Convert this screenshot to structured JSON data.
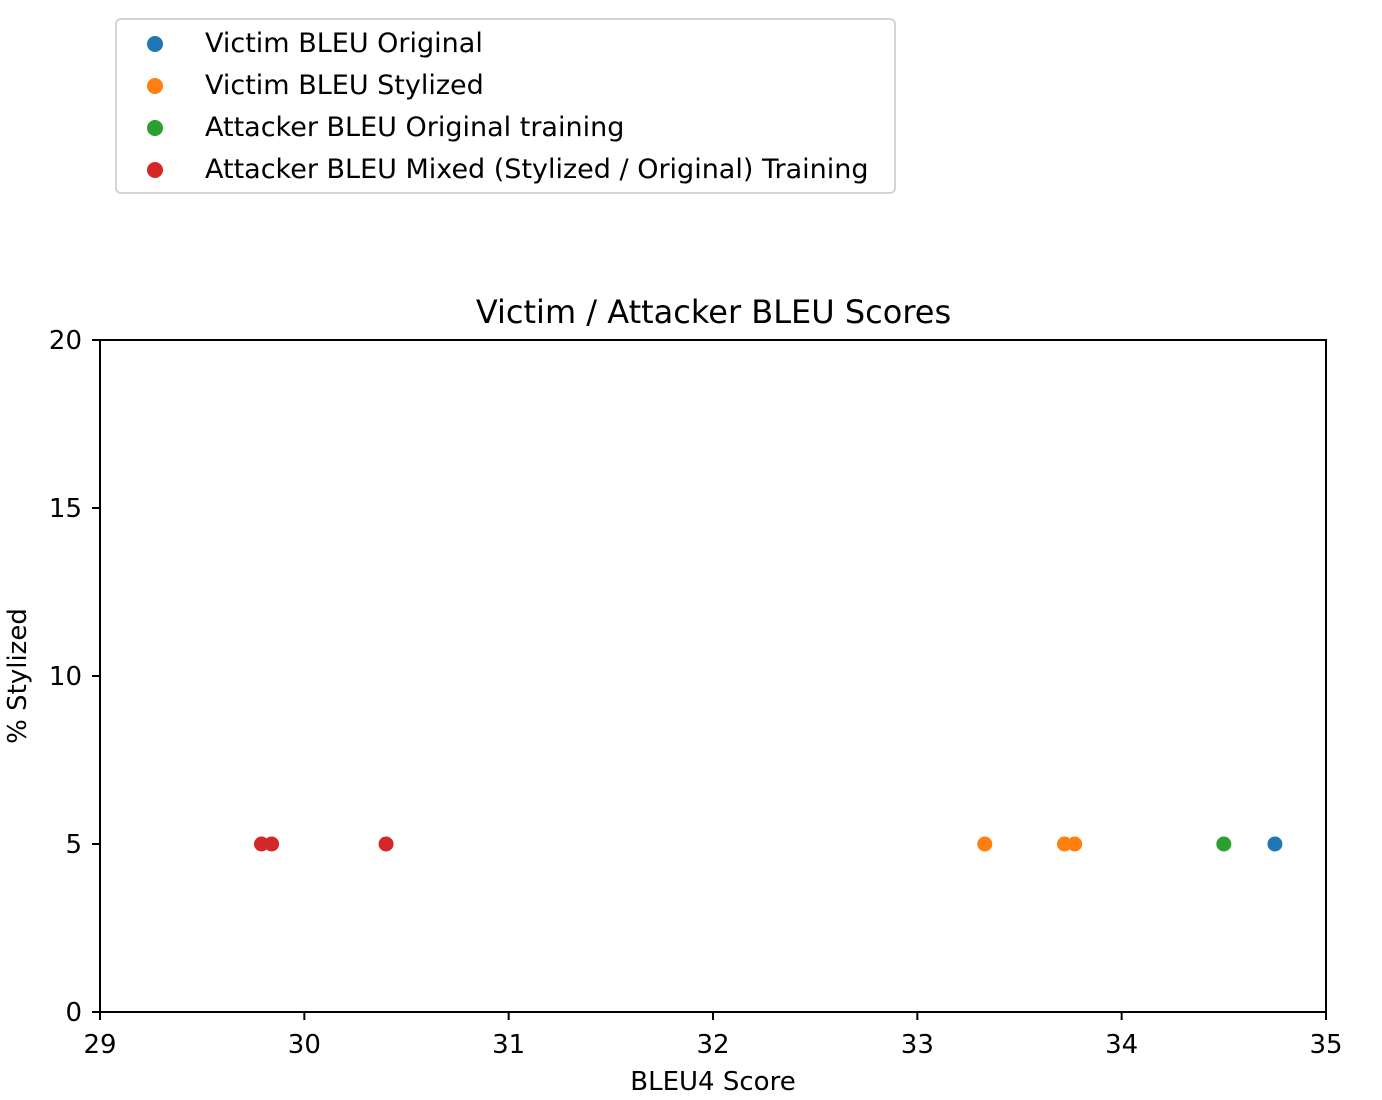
{
  "chart_data": {
    "type": "scatter",
    "title": "Victim / Attacker BLEU Scores",
    "xlabel": "BLEU4 Score",
    "ylabel": "% Stylized",
    "xlim": [
      29,
      35
    ],
    "ylim": [
      0,
      20
    ],
    "xticks": [
      "29",
      "30",
      "31",
      "32",
      "33",
      "34",
      "35"
    ],
    "yticks": [
      "0",
      "5",
      "10",
      "15",
      "20"
    ],
    "grid": false,
    "legend_position": "top-left, above plot",
    "series": [
      {
        "name": "Victim BLEU Original",
        "color": "#1f77b4",
        "points": [
          {
            "x": 34.75,
            "y": 5
          }
        ]
      },
      {
        "name": "Victim BLEU Stylized",
        "color": "#ff7f0e",
        "points": [
          {
            "x": 33.33,
            "y": 5
          },
          {
            "x": 33.72,
            "y": 5
          },
          {
            "x": 33.77,
            "y": 5
          }
        ]
      },
      {
        "name": "Attacker BLEU Original training",
        "color": "#2ca02c",
        "points": [
          {
            "x": 34.5,
            "y": 5
          }
        ]
      },
      {
        "name": "Attacker BLEU Mixed (Stylized / Original) Training",
        "color": "#d62728",
        "points": [
          {
            "x": 29.79,
            "y": 5
          },
          {
            "x": 29.84,
            "y": 5
          },
          {
            "x": 30.4,
            "y": 5
          }
        ]
      }
    ]
  }
}
